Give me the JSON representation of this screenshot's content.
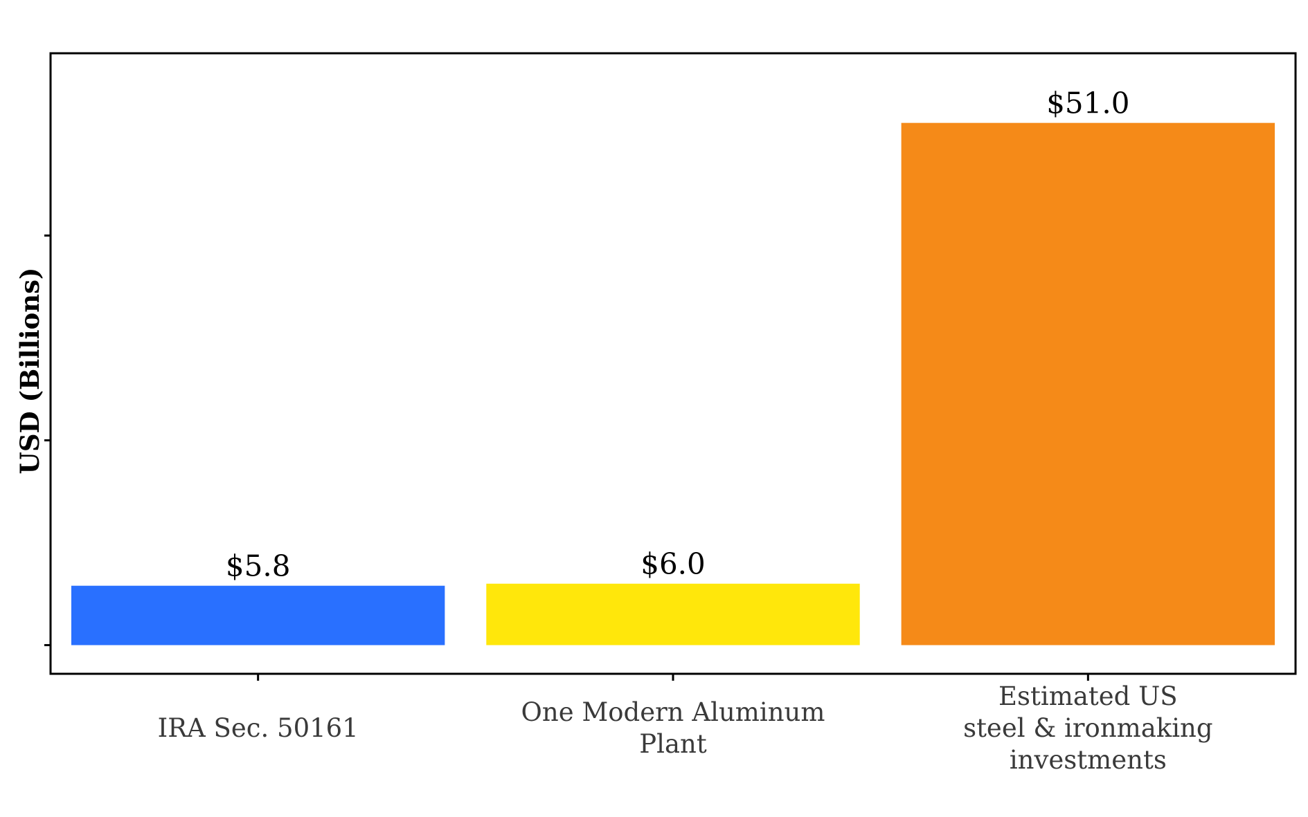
{
  "chart_data": {
    "type": "bar",
    "ylabel": "USD (Billions)",
    "categories": [
      [
        "IRA Sec. 50161"
      ],
      [
        "One Modern Aluminum",
        "Plant"
      ],
      [
        "Estimated US",
        "steel & ironmaking",
        "investments"
      ]
    ],
    "values": [
      5.8,
      6.0,
      51.0
    ],
    "data_labels": [
      "$5.8",
      "$6.0",
      "$51.0"
    ],
    "colors": [
      "#2970FF",
      "#FFE70B",
      "#F58A18"
    ],
    "ylim": [
      -2.8,
      57.8
    ],
    "y_ticks": [
      0,
      20,
      40
    ],
    "y_tick_labels_shown": false,
    "grid": false
  }
}
